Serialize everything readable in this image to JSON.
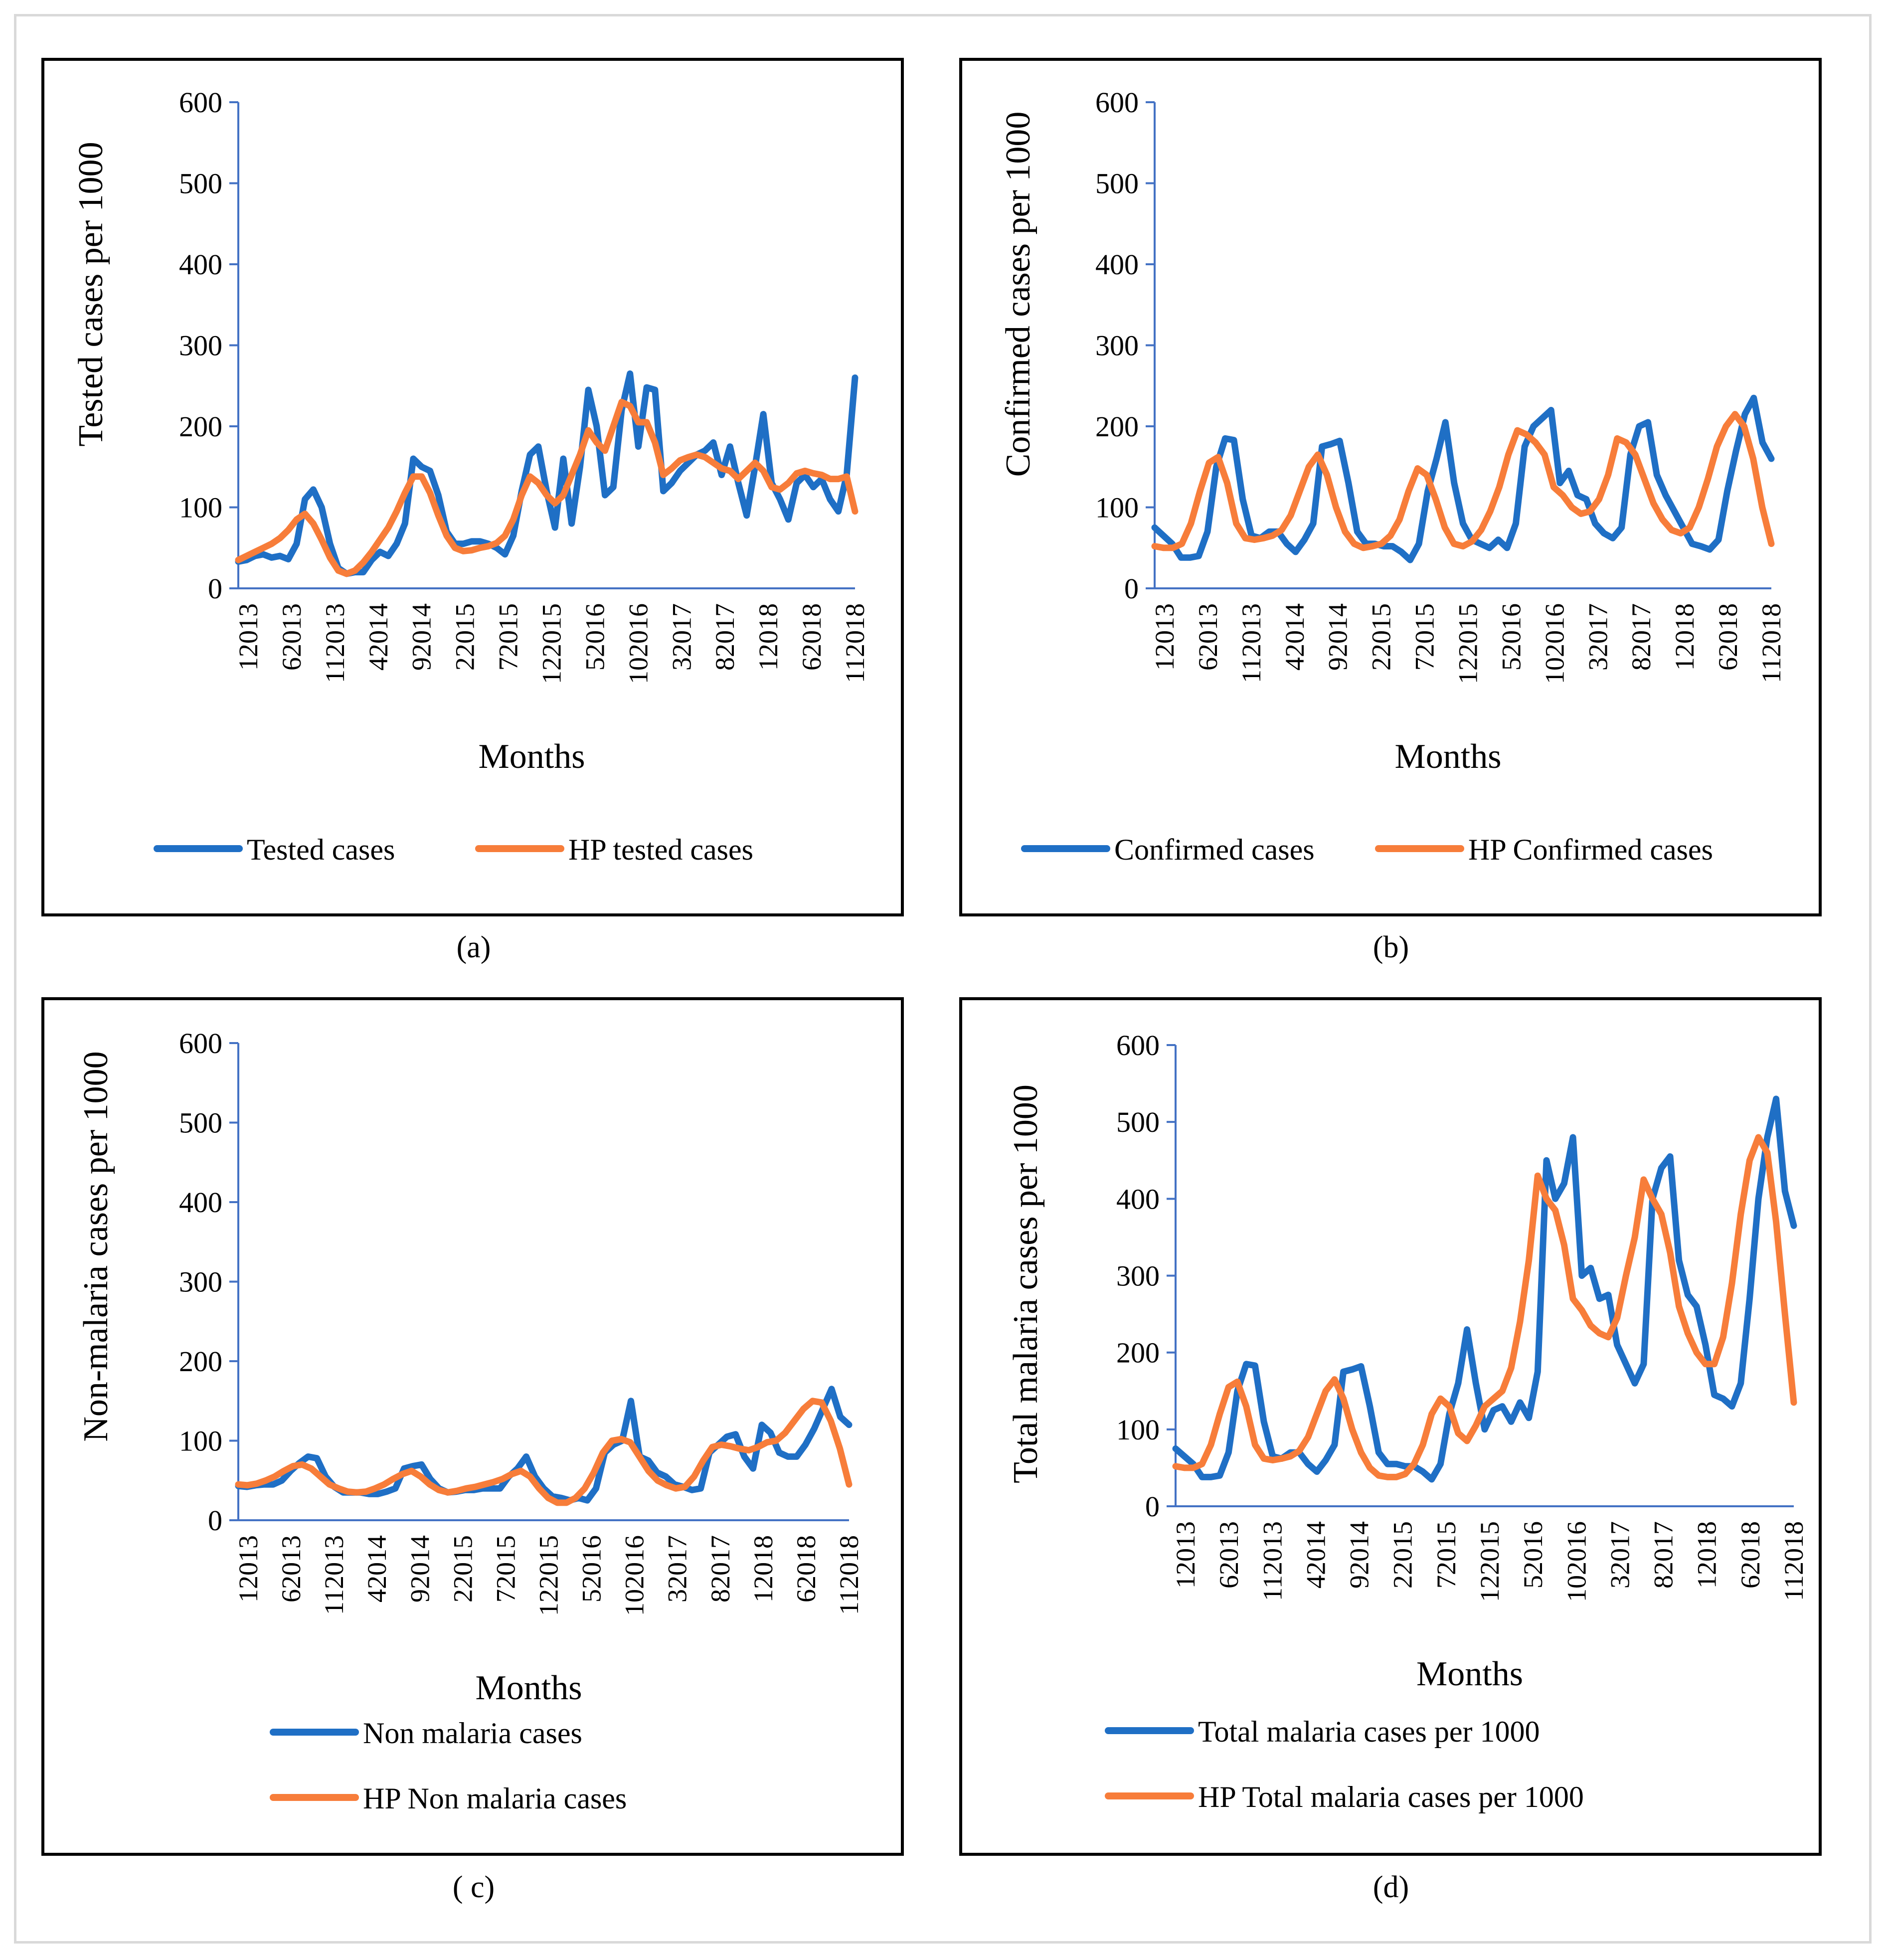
{
  "captions": [
    "(a)",
    "(b)",
    "( c)",
    "(d)"
  ],
  "colors": {
    "actual": "#1f6fc5",
    "hp": "#f77d3a",
    "axis": "#4472c4"
  },
  "chart_data": [
    {
      "type": "line",
      "ylabel": "Tested cases per 1000",
      "xlabel": "Months",
      "ylim": [
        0,
        600
      ],
      "yticks": [
        0,
        100,
        200,
        300,
        400,
        500,
        600
      ],
      "xticks": [
        "12013",
        "62013",
        "112013",
        "42014",
        "92014",
        "22015",
        "72015",
        "122015",
        "52016",
        "102016",
        "32017",
        "82017",
        "12018",
        "62018",
        "112018"
      ],
      "series": [
        {
          "name": "Tested cases",
          "values": [
            33,
            35,
            40,
            42,
            38,
            40,
            36,
            55,
            110,
            122,
            100,
            55,
            25,
            18,
            20,
            20,
            35,
            45,
            40,
            55,
            80,
            160,
            150,
            145,
            115,
            70,
            55,
            55,
            58,
            58,
            55,
            50,
            42,
            65,
            120,
            165,
            175,
            120,
            75,
            160,
            80,
            150,
            245,
            200,
            115,
            125,
            220,
            265,
            175,
            248,
            245,
            120,
            130,
            145,
            155,
            165,
            170,
            180,
            140,
            175,
            130,
            90,
            150,
            215,
            130,
            110,
            85,
            130,
            140,
            125,
            135,
            110,
            95,
            140,
            260
          ]
        },
        {
          "name": "HP tested cases",
          "values": [
            35,
            40,
            45,
            50,
            55,
            62,
            72,
            85,
            92,
            80,
            60,
            38,
            22,
            18,
            22,
            32,
            45,
            60,
            75,
            95,
            118,
            138,
            138,
            118,
            90,
            65,
            50,
            46,
            47,
            50,
            52,
            56,
            65,
            85,
            115,
            138,
            130,
            115,
            105,
            115,
            140,
            165,
            195,
            180,
            170,
            200,
            230,
            225,
            205,
            205,
            180,
            140,
            148,
            158,
            162,
            165,
            162,
            155,
            148,
            145,
            135,
            145,
            155,
            145,
            125,
            122,
            130,
            142,
            145,
            142,
            140,
            135,
            135,
            138,
            95
          ]
        }
      ]
    },
    {
      "type": "line",
      "ylabel": "Confirmed cases per 1000",
      "xlabel": "Months",
      "ylim": [
        0,
        600
      ],
      "yticks": [
        0,
        100,
        200,
        300,
        400,
        500,
        600
      ],
      "xticks": [
        "12013",
        "62013",
        "112013",
        "42014",
        "92014",
        "22015",
        "72015",
        "122015",
        "52016",
        "102016",
        "32017",
        "82017",
        "12018",
        "62018",
        "112018"
      ],
      "series": [
        {
          "name": "Confirmed cases",
          "values": [
            75,
            65,
            55,
            38,
            38,
            40,
            70,
            150,
            185,
            183,
            110,
            65,
            62,
            70,
            70,
            55,
            45,
            60,
            80,
            175,
            178,
            182,
            130,
            70,
            55,
            55,
            52,
            52,
            45,
            35,
            55,
            120,
            160,
            205,
            130,
            80,
            60,
            55,
            50,
            60,
            50,
            80,
            175,
            200,
            210,
            220,
            130,
            145,
            115,
            110,
            80,
            68,
            62,
            75,
            165,
            200,
            205,
            140,
            115,
            95,
            75,
            55,
            52,
            48,
            60,
            120,
            170,
            215,
            235,
            180,
            160
          ]
        },
        {
          "name": "HP Confirmed cases",
          "values": [
            52,
            50,
            50,
            55,
            80,
            120,
            155,
            162,
            130,
            80,
            62,
            60,
            62,
            65,
            72,
            90,
            120,
            150,
            165,
            140,
            100,
            70,
            55,
            50,
            52,
            55,
            65,
            85,
            120,
            148,
            140,
            110,
            75,
            55,
            52,
            58,
            72,
            95,
            125,
            165,
            195,
            190,
            180,
            165,
            125,
            115,
            100,
            92,
            95,
            110,
            140,
            185,
            180,
            165,
            135,
            105,
            85,
            72,
            68,
            75,
            100,
            135,
            175,
            200,
            215,
            200,
            160,
            100,
            55
          ]
        }
      ]
    },
    {
      "type": "line",
      "ylabel": "Non-malaria cases per 1000",
      "xlabel": "Months",
      "ylim": [
        0,
        600
      ],
      "yticks": [
        0,
        100,
        200,
        300,
        400,
        500,
        600
      ],
      "xticks": [
        "12013",
        "62013",
        "112013",
        "42014",
        "92014",
        "22015",
        "72015",
        "122015",
        "52016",
        "102016",
        "32017",
        "82017",
        "12018",
        "62018",
        "112018"
      ],
      "series": [
        {
          "name": "Non malaria cases",
          "values": [
            43,
            42,
            44,
            45,
            45,
            50,
            62,
            72,
            80,
            78,
            55,
            42,
            35,
            35,
            35,
            33,
            33,
            36,
            40,
            65,
            68,
            70,
            52,
            40,
            35,
            36,
            38,
            38,
            40,
            40,
            40,
            55,
            65,
            80,
            55,
            40,
            30,
            28,
            25,
            28,
            25,
            40,
            85,
            95,
            100,
            150,
            80,
            75,
            60,
            55,
            45,
            42,
            38,
            40,
            85,
            95,
            105,
            108,
            80,
            65,
            120,
            110,
            85,
            80,
            80,
            95,
            115,
            140,
            165,
            130,
            120
          ]
        },
        {
          "name": "HP Non malaria cases",
          "values": [
            45,
            44,
            46,
            50,
            55,
            62,
            68,
            70,
            65,
            55,
            45,
            40,
            36,
            35,
            36,
            40,
            45,
            52,
            58,
            62,
            55,
            45,
            38,
            35,
            37,
            40,
            42,
            45,
            48,
            52,
            58,
            62,
            55,
            40,
            28,
            22,
            22,
            28,
            40,
            60,
            85,
            100,
            102,
            98,
            80,
            62,
            50,
            44,
            40,
            42,
            55,
            75,
            92,
            95,
            93,
            90,
            88,
            92,
            98,
            100,
            110,
            125,
            140,
            150,
            148,
            125,
            90,
            45
          ]
        }
      ]
    },
    {
      "type": "line",
      "ylabel": "Total malaria cases per 1000",
      "xlabel": "Months",
      "ylim": [
        0,
        600
      ],
      "yticks": [
        0,
        100,
        200,
        300,
        400,
        500,
        600
      ],
      "xticks": [
        "12013",
        "62013",
        "112013",
        "42014",
        "92014",
        "22015",
        "72015",
        "122015",
        "52016",
        "102016",
        "32017",
        "82017",
        "12018",
        "62018",
        "112018"
      ],
      "series": [
        {
          "name": "Total malaria cases per 1000",
          "values": [
            75,
            65,
            55,
            38,
            38,
            40,
            70,
            150,
            185,
            183,
            110,
            65,
            62,
            70,
            70,
            55,
            45,
            60,
            80,
            175,
            178,
            182,
            130,
            70,
            55,
            55,
            52,
            52,
            45,
            35,
            55,
            120,
            160,
            230,
            160,
            100,
            125,
            130,
            110,
            135,
            115,
            175,
            450,
            400,
            420,
            480,
            300,
            310,
            270,
            275,
            210,
            185,
            160,
            185,
            400,
            440,
            455,
            320,
            275,
            260,
            210,
            145,
            140,
            130,
            160,
            270,
            400,
            480,
            530,
            410,
            365
          ]
        },
        {
          "name": "HP Total malaria cases per 1000",
          "values": [
            52,
            50,
            50,
            55,
            80,
            120,
            155,
            162,
            130,
            80,
            62,
            60,
            62,
            65,
            72,
            90,
            120,
            150,
            165,
            140,
            100,
            70,
            50,
            40,
            38,
            38,
            42,
            55,
            80,
            120,
            140,
            130,
            95,
            85,
            105,
            130,
            140,
            150,
            180,
            240,
            320,
            430,
            400,
            385,
            340,
            270,
            255,
            235,
            225,
            220,
            245,
            300,
            350,
            425,
            400,
            380,
            330,
            260,
            225,
            200,
            185,
            185,
            220,
            290,
            380,
            450,
            480,
            460,
            370,
            250,
            135
          ]
        }
      ]
    }
  ]
}
